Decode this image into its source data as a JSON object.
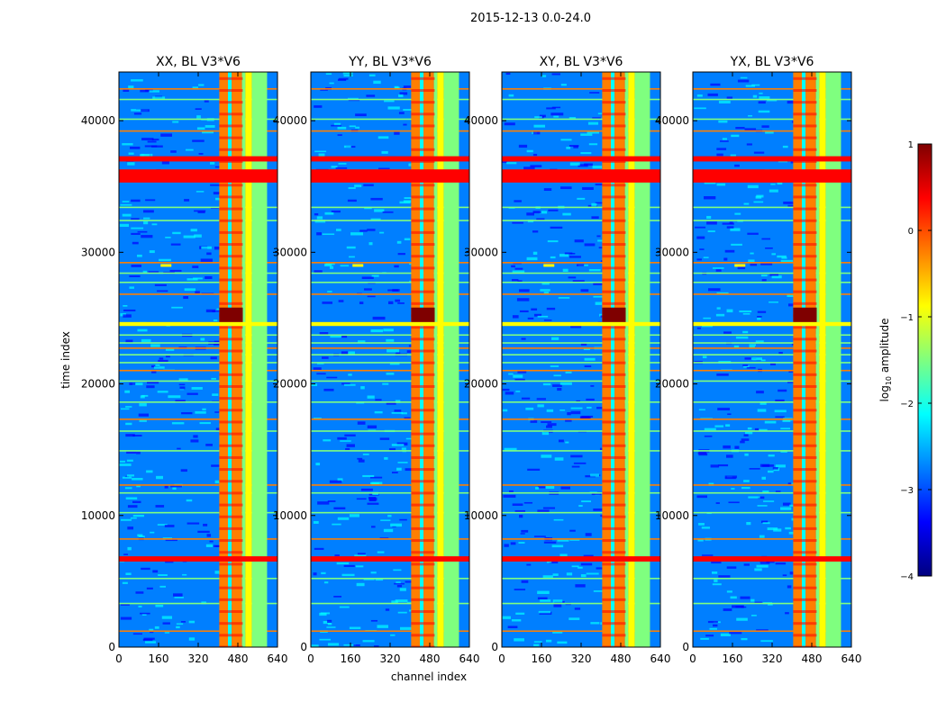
{
  "figure_title": "2015-12-13 0.0-24.0",
  "chart_data": {
    "type": "heatmap",
    "suptitle": "2015-12-13 0.0-24.0",
    "xlabel": "channel index",
    "ylabel": "time index",
    "xlim": [
      0,
      640
    ],
    "ylim": [
      0,
      43700
    ],
    "xticks": [
      0,
      160,
      320,
      480,
      640
    ],
    "xtick_labels": [
      "0",
      "160",
      "320",
      "480",
      "640"
    ],
    "yticks": [
      0,
      10000,
      20000,
      30000,
      40000
    ],
    "ytick_labels": [
      "0",
      "10000",
      "20000",
      "30000",
      "40000"
    ],
    "panels": [
      {
        "title": "XX, BL V3*V6",
        "polarization": "XX",
        "baseline": "V3*V6"
      },
      {
        "title": "YY, BL V3*V6",
        "polarization": "YY",
        "baseline": "V3*V6"
      },
      {
        "title": "XY, BL V3*V6",
        "polarization": "XY",
        "baseline": "V3*V6"
      },
      {
        "title": "YX, BL V3*V6",
        "polarization": "YX",
        "baseline": "V3*V6"
      }
    ],
    "colorbar": {
      "label": "log10 amplitude",
      "label_base": "log",
      "label_sub": "10",
      "label_rest": " amplitude",
      "range": [
        -4,
        1
      ],
      "ticks": [
        1,
        0,
        -1,
        -2,
        -3,
        -4
      ],
      "tick_labels": [
        "1",
        "0",
        "−1",
        "−2",
        "−3",
        "−4"
      ],
      "colormap": "jet",
      "colors": [
        "#00007f",
        "#0000ff",
        "#007fff",
        "#00ffff",
        "#7fff7f",
        "#ffff00",
        "#ff7f00",
        "#ff0000",
        "#7f0000"
      ]
    },
    "background_level": -2.8,
    "rfi_channel_bands": [
      {
        "channels": [
          405,
          440
        ],
        "level": -0.5
      },
      {
        "channels": [
          440,
          455
        ],
        "level": -1.9
      },
      {
        "channels": [
          455,
          497
        ],
        "level": -0.3
      },
      {
        "channels": [
          497,
          510
        ],
        "level": -1.6
      },
      {
        "channels": [
          510,
          537
        ],
        "level": -0.9
      },
      {
        "channels": [
          537,
          598
        ],
        "level": -1.6
      }
    ],
    "rfi_time_bands": [
      {
        "rows": [
          35300,
          36300
        ],
        "level": 0.3
      },
      {
        "rows": [
          36900,
          37300
        ],
        "level": 0.3
      },
      {
        "rows": [
          6500,
          6900
        ],
        "level": 0.2
      },
      {
        "rows": [
          24400,
          24700
        ],
        "level": -1.0
      }
    ],
    "strong_burst": {
      "channels": [
        405,
        500
      ],
      "rows": [
        24500,
        25800
      ],
      "level": 0.7
    },
    "feature": {
      "channel": 190,
      "row": 29000
    }
  }
}
